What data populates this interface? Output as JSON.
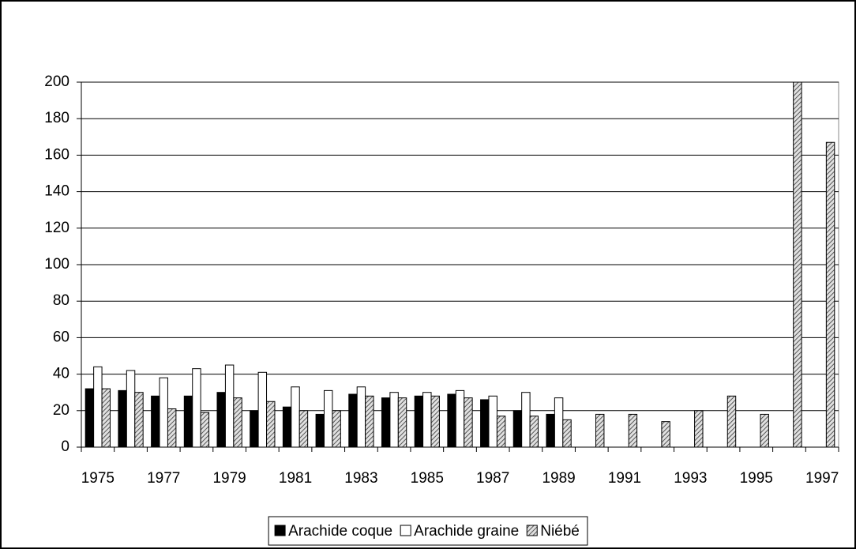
{
  "chart_data": {
    "type": "bar",
    "categories": [
      "1975",
      null,
      "1977",
      null,
      "1979",
      null,
      "1981",
      null,
      "1983",
      null,
      "1985",
      null,
      "1987",
      null,
      "1989",
      null,
      "1991",
      null,
      "1993",
      null,
      "1995",
      null,
      "1997"
    ],
    "series": [
      {
        "name": "Arachide coque",
        "color": "#000000",
        "values": [
          32,
          31,
          28,
          28,
          30,
          20,
          22,
          18,
          29,
          27,
          28,
          29,
          26,
          20,
          18,
          null,
          null,
          null,
          null,
          null,
          null,
          null,
          null
        ]
      },
      {
        "name": "Arachide graine",
        "color": "#ffffff",
        "values": [
          44,
          42,
          38,
          43,
          45,
          41,
          33,
          31,
          33,
          30,
          30,
          31,
          28,
          30,
          27,
          null,
          null,
          null,
          null,
          null,
          null,
          null,
          null
        ]
      },
      {
        "name": "Niébé",
        "color": "#a0a0a0",
        "pattern": "diagonal-hatch",
        "values": [
          32,
          30,
          21,
          19,
          27,
          25,
          20,
          20,
          28,
          27,
          28,
          27,
          17,
          17,
          15,
          18,
          18,
          14,
          20,
          28,
          18,
          200,
          167
        ]
      }
    ],
    "ylim": [
      0,
      200
    ],
    "yticks": [
      0,
      20,
      40,
      60,
      80,
      100,
      120,
      140,
      160,
      180,
      200
    ],
    "grid": true,
    "legend": "bottom"
  }
}
